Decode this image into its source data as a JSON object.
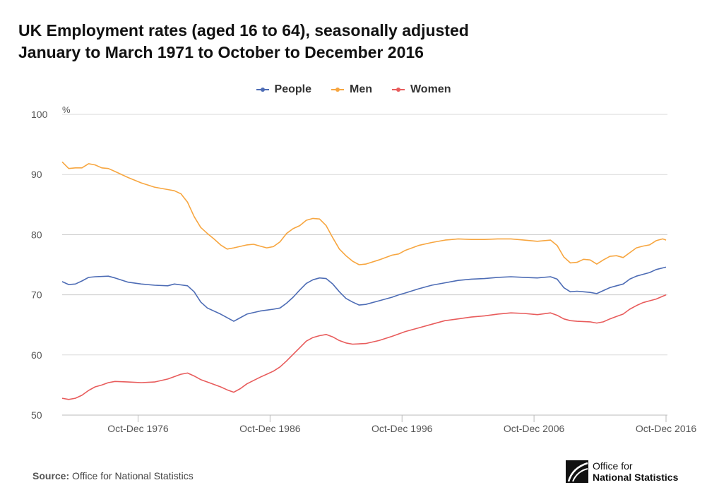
{
  "title_line1": "UK Employment rates (aged 16 to 64), seasonally adjusted",
  "title_line2": "January to March 1971 to October to December 2016",
  "source_label": "Source:",
  "source_text": "Office for National Statistics",
  "logo_line1": "Office for",
  "logo_line2": "National Statistics",
  "logo_icon": "ons-logo-icon",
  "colors": {
    "people": "#4d6cb5",
    "men": "#f7a640",
    "women": "#e85c5c",
    "grid": "#d9d9d9",
    "axis_text": "#555555"
  },
  "chart_data": {
    "type": "line",
    "title": "UK Employment rates (aged 16 to 64), seasonally adjusted",
    "subtitle": "January to March 1971 to October to December 2016",
    "ylabel": "%",
    "ylim": [
      50,
      100
    ],
    "yticks": [
      "50",
      "60",
      "70",
      "80",
      "90",
      "100"
    ],
    "xlim": [
      1971.0,
      2016.75
    ],
    "xticks": [
      {
        "x": 1976.75,
        "label": "Oct-Dec 1976"
      },
      {
        "x": 1986.75,
        "label": "Oct-Dec 1986"
      },
      {
        "x": 1996.75,
        "label": "Oct-Dec 1996"
      },
      {
        "x": 2006.75,
        "label": "Oct-Dec 2006"
      },
      {
        "x": 2016.75,
        "label": "Oct-Dec 2016"
      }
    ],
    "grid": true,
    "legend_position": "top-center",
    "series": [
      {
        "name": "People",
        "points": [
          [
            1971.0,
            72.2
          ],
          [
            1971.5,
            71.7
          ],
          [
            1972.0,
            71.8
          ],
          [
            1972.5,
            72.3
          ],
          [
            1973.0,
            72.9
          ],
          [
            1973.5,
            73.0
          ],
          [
            1974.5,
            73.1
          ],
          [
            1975.0,
            72.8
          ],
          [
            1976.0,
            72.1
          ],
          [
            1977.0,
            71.8
          ],
          [
            1978.0,
            71.6
          ],
          [
            1979.0,
            71.5
          ],
          [
            1979.5,
            71.8
          ],
          [
            1980.5,
            71.5
          ],
          [
            1981.0,
            70.5
          ],
          [
            1981.5,
            68.8
          ],
          [
            1982.0,
            67.8
          ],
          [
            1983.0,
            66.8
          ],
          [
            1984.0,
            65.6
          ],
          [
            1984.5,
            66.2
          ],
          [
            1985.0,
            66.8
          ],
          [
            1986.0,
            67.3
          ],
          [
            1987.0,
            67.6
          ],
          [
            1987.5,
            67.8
          ],
          [
            1988.0,
            68.6
          ],
          [
            1988.5,
            69.6
          ],
          [
            1989.0,
            70.8
          ],
          [
            1989.5,
            71.9
          ],
          [
            1990.0,
            72.5
          ],
          [
            1990.5,
            72.8
          ],
          [
            1991.0,
            72.7
          ],
          [
            1991.5,
            71.8
          ],
          [
            1992.0,
            70.5
          ],
          [
            1992.5,
            69.4
          ],
          [
            1993.0,
            68.8
          ],
          [
            1993.5,
            68.3
          ],
          [
            1994.0,
            68.4
          ],
          [
            1995.0,
            69.0
          ],
          [
            1996.0,
            69.6
          ],
          [
            1996.5,
            70.0
          ],
          [
            1997.0,
            70.3
          ],
          [
            1998.0,
            71.0
          ],
          [
            1999.0,
            71.6
          ],
          [
            2000.0,
            72.0
          ],
          [
            2001.0,
            72.4
          ],
          [
            2002.0,
            72.6
          ],
          [
            2003.0,
            72.7
          ],
          [
            2004.0,
            72.9
          ],
          [
            2005.0,
            73.0
          ],
          [
            2006.0,
            72.9
          ],
          [
            2007.0,
            72.8
          ],
          [
            2008.0,
            73.0
          ],
          [
            2008.5,
            72.6
          ],
          [
            2009.0,
            71.2
          ],
          [
            2009.5,
            70.5
          ],
          [
            2010.0,
            70.6
          ],
          [
            2010.5,
            70.5
          ],
          [
            2011.0,
            70.4
          ],
          [
            2011.5,
            70.2
          ],
          [
            2012.0,
            70.7
          ],
          [
            2012.5,
            71.2
          ],
          [
            2013.0,
            71.5
          ],
          [
            2013.5,
            71.8
          ],
          [
            2014.0,
            72.6
          ],
          [
            2014.5,
            73.1
          ],
          [
            2015.0,
            73.4
          ],
          [
            2015.5,
            73.7
          ],
          [
            2016.0,
            74.2
          ],
          [
            2016.75,
            74.6
          ]
        ]
      },
      {
        "name": "Men",
        "points": [
          [
            1971.0,
            92.1
          ],
          [
            1971.5,
            91.0
          ],
          [
            1972.0,
            91.1
          ],
          [
            1972.5,
            91.1
          ],
          [
            1973.0,
            91.8
          ],
          [
            1973.5,
            91.6
          ],
          [
            1974.0,
            91.1
          ],
          [
            1974.5,
            91.0
          ],
          [
            1975.0,
            90.5
          ],
          [
            1976.0,
            89.5
          ],
          [
            1977.0,
            88.6
          ],
          [
            1978.0,
            87.9
          ],
          [
            1979.0,
            87.5
          ],
          [
            1979.5,
            87.3
          ],
          [
            1980.0,
            86.8
          ],
          [
            1980.5,
            85.4
          ],
          [
            1981.0,
            83.0
          ],
          [
            1981.5,
            81.2
          ],
          [
            1982.0,
            80.2
          ],
          [
            1982.5,
            79.3
          ],
          [
            1983.0,
            78.3
          ],
          [
            1983.5,
            77.6
          ],
          [
            1984.0,
            77.8
          ],
          [
            1985.0,
            78.3
          ],
          [
            1985.5,
            78.4
          ],
          [
            1986.0,
            78.1
          ],
          [
            1986.5,
            77.8
          ],
          [
            1987.0,
            78.0
          ],
          [
            1987.5,
            78.8
          ],
          [
            1988.0,
            80.2
          ],
          [
            1988.5,
            81.0
          ],
          [
            1989.0,
            81.5
          ],
          [
            1989.5,
            82.4
          ],
          [
            1990.0,
            82.7
          ],
          [
            1990.5,
            82.6
          ],
          [
            1991.0,
            81.5
          ],
          [
            1991.5,
            79.5
          ],
          [
            1992.0,
            77.6
          ],
          [
            1992.5,
            76.5
          ],
          [
            1993.0,
            75.6
          ],
          [
            1993.5,
            75.0
          ],
          [
            1994.0,
            75.1
          ],
          [
            1995.0,
            75.8
          ],
          [
            1996.0,
            76.6
          ],
          [
            1996.5,
            76.8
          ],
          [
            1997.0,
            77.4
          ],
          [
            1998.0,
            78.2
          ],
          [
            1999.0,
            78.7
          ],
          [
            2000.0,
            79.1
          ],
          [
            2001.0,
            79.3
          ],
          [
            2002.0,
            79.2
          ],
          [
            2003.0,
            79.2
          ],
          [
            2004.0,
            79.3
          ],
          [
            2005.0,
            79.3
          ],
          [
            2006.0,
            79.1
          ],
          [
            2007.0,
            78.9
          ],
          [
            2008.0,
            79.1
          ],
          [
            2008.5,
            78.2
          ],
          [
            2009.0,
            76.3
          ],
          [
            2009.5,
            75.3
          ],
          [
            2010.0,
            75.4
          ],
          [
            2010.5,
            75.9
          ],
          [
            2011.0,
            75.8
          ],
          [
            2011.5,
            75.1
          ],
          [
            2012.0,
            75.8
          ],
          [
            2012.5,
            76.4
          ],
          [
            2013.0,
            76.5
          ],
          [
            2013.5,
            76.2
          ],
          [
            2014.0,
            77.0
          ],
          [
            2014.5,
            77.8
          ],
          [
            2015.0,
            78.1
          ],
          [
            2015.5,
            78.3
          ],
          [
            2016.0,
            79.0
          ],
          [
            2016.5,
            79.3
          ],
          [
            2016.75,
            79.1
          ]
        ]
      },
      {
        "name": "Women",
        "points": [
          [
            1971.0,
            52.8
          ],
          [
            1971.5,
            52.6
          ],
          [
            1972.0,
            52.8
          ],
          [
            1972.5,
            53.3
          ],
          [
            1973.0,
            54.1
          ],
          [
            1973.5,
            54.7
          ],
          [
            1974.0,
            55.0
          ],
          [
            1974.5,
            55.4
          ],
          [
            1975.0,
            55.6
          ],
          [
            1976.0,
            55.5
          ],
          [
            1977.0,
            55.4
          ],
          [
            1978.0,
            55.5
          ],
          [
            1979.0,
            56.0
          ],
          [
            1979.5,
            56.4
          ],
          [
            1980.0,
            56.8
          ],
          [
            1980.5,
            57.0
          ],
          [
            1981.0,
            56.5
          ],
          [
            1981.5,
            55.9
          ],
          [
            1982.0,
            55.5
          ],
          [
            1983.0,
            54.7
          ],
          [
            1983.5,
            54.2
          ],
          [
            1984.0,
            53.8
          ],
          [
            1984.5,
            54.4
          ],
          [
            1985.0,
            55.2
          ],
          [
            1986.0,
            56.3
          ],
          [
            1987.0,
            57.3
          ],
          [
            1987.5,
            58.0
          ],
          [
            1988.0,
            59.0
          ],
          [
            1988.5,
            60.1
          ],
          [
            1989.0,
            61.2
          ],
          [
            1989.5,
            62.3
          ],
          [
            1990.0,
            62.9
          ],
          [
            1990.5,
            63.2
          ],
          [
            1991.0,
            63.4
          ],
          [
            1991.5,
            63.0
          ],
          [
            1992.0,
            62.4
          ],
          [
            1992.5,
            62.0
          ],
          [
            1993.0,
            61.8
          ],
          [
            1994.0,
            61.9
          ],
          [
            1995.0,
            62.4
          ],
          [
            1996.0,
            63.1
          ],
          [
            1996.5,
            63.5
          ],
          [
            1997.0,
            63.9
          ],
          [
            1998.0,
            64.5
          ],
          [
            1999.0,
            65.1
          ],
          [
            2000.0,
            65.7
          ],
          [
            2001.0,
            66.0
          ],
          [
            2002.0,
            66.3
          ],
          [
            2003.0,
            66.5
          ],
          [
            2004.0,
            66.8
          ],
          [
            2005.0,
            67.0
          ],
          [
            2006.0,
            66.9
          ],
          [
            2007.0,
            66.7
          ],
          [
            2008.0,
            67.0
          ],
          [
            2008.5,
            66.6
          ],
          [
            2009.0,
            66.0
          ],
          [
            2009.5,
            65.7
          ],
          [
            2010.0,
            65.6
          ],
          [
            2011.0,
            65.5
          ],
          [
            2011.5,
            65.3
          ],
          [
            2012.0,
            65.5
          ],
          [
            2012.5,
            66.0
          ],
          [
            2013.0,
            66.4
          ],
          [
            2013.5,
            66.8
          ],
          [
            2014.0,
            67.6
          ],
          [
            2014.5,
            68.2
          ],
          [
            2015.0,
            68.7
          ],
          [
            2015.5,
            69.0
          ],
          [
            2016.0,
            69.3
          ],
          [
            2016.75,
            70.0
          ]
        ]
      }
    ]
  }
}
